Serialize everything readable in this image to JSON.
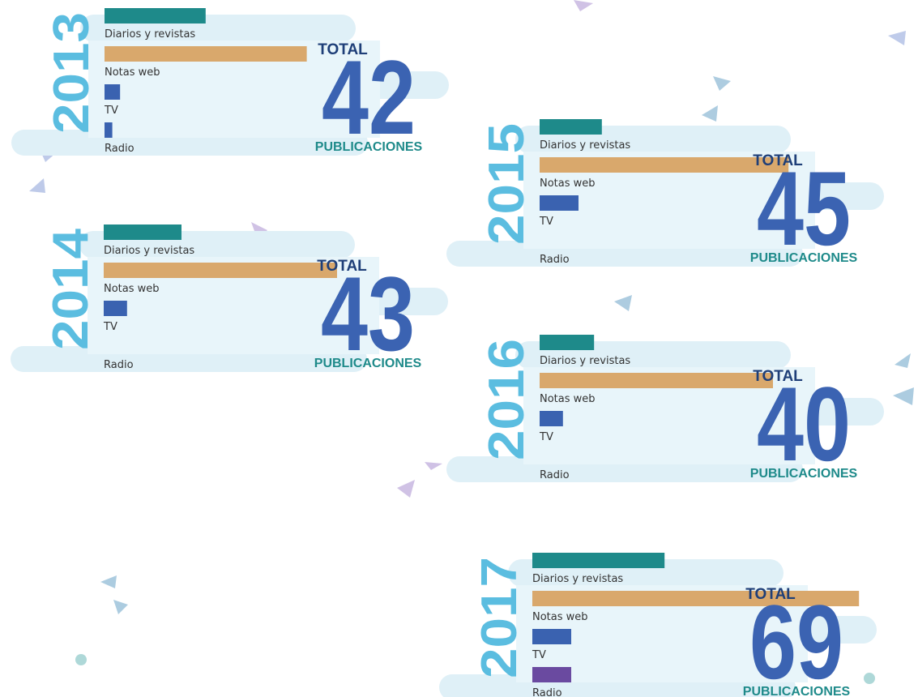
{
  "chart_data": [
    {
      "type": "bar",
      "title": "2013",
      "categories": [
        "Diarios y revistas",
        "Notas web",
        "TV",
        "Radio"
      ],
      "values": [
        13,
        26,
        2,
        1
      ],
      "colors": [
        "#1e8a8a",
        "#d9a86c",
        "#3a62b0",
        "#3a62b0"
      ],
      "total_label": "TOTAL",
      "total": 42,
      "total_unit": "PUBLICACIONES"
    },
    {
      "type": "bar",
      "title": "2014",
      "categories": [
        "Diarios y revistas",
        "Notas web",
        "TV",
        "Radio"
      ],
      "values": [
        10,
        30,
        3,
        0
      ],
      "colors": [
        "#1e8a8a",
        "#d9a86c",
        "#3a62b0",
        "#3a62b0"
      ],
      "total_label": "TOTAL",
      "total": 43,
      "total_unit": "PUBLICACIONES"
    },
    {
      "type": "bar",
      "title": "2015",
      "categories": [
        "Diarios y revistas",
        "Notas web",
        "TV",
        "Radio"
      ],
      "values": [
        8,
        32,
        5,
        0
      ],
      "colors": [
        "#1e8a8a",
        "#d9a86c",
        "#3a62b0",
        "#3a62b0"
      ],
      "total_label": "TOTAL",
      "total": 45,
      "total_unit": "PUBLICACIONES"
    },
    {
      "type": "bar",
      "title": "2016",
      "categories": [
        "Diarios y revistas",
        "Notas web",
        "TV",
        "Radio"
      ],
      "values": [
        7,
        30,
        3,
        0
      ],
      "colors": [
        "#1e8a8a",
        "#d9a86c",
        "#3a62b0",
        "#3a62b0"
      ],
      "total_label": "TOTAL",
      "total": 40,
      "total_unit": "PUBLICACIONES"
    },
    {
      "type": "bar",
      "title": "2017",
      "categories": [
        "Diarios y revistas",
        "Notas web",
        "TV",
        "Radio"
      ],
      "values": [
        17,
        42,
        5,
        5
      ],
      "colors": [
        "#1e8a8a",
        "#d9a86c",
        "#3a62b0",
        "#6a4aa0"
      ],
      "total_label": "TOTAL",
      "total": 69,
      "total_unit": "PUBLICACIONES"
    }
  ]
}
